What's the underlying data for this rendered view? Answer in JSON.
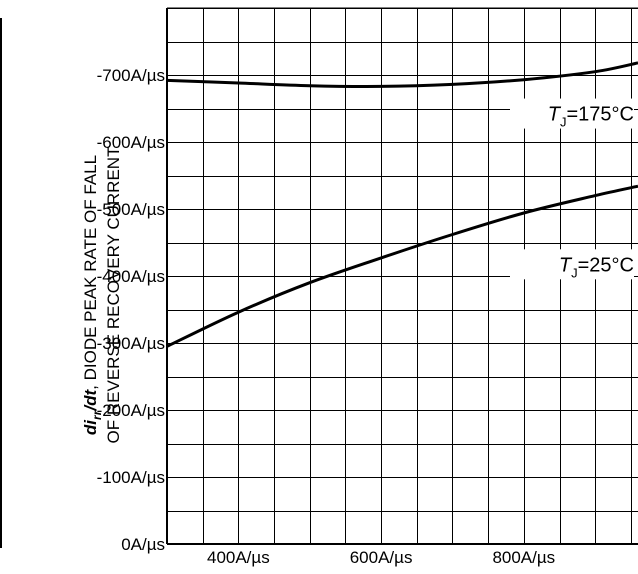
{
  "chart_data": {
    "type": "line",
    "title": "",
    "xlabel": "",
    "ylabel": {
      "line1_prefix": "di",
      "line1_subscript": "rr",
      "line1_mid": "/dt",
      "line1_rest": ", DIODE PEAK RATE OF FALL",
      "line2": "OF REVERSE RECOVERY CURRENT"
    },
    "xlim": [
      300,
      960
    ],
    "ylim": [
      0,
      800
    ],
    "x_ticks": [
      {
        "value": 400,
        "label": "400A/µs"
      },
      {
        "value": 600,
        "label": "600A/µs"
      },
      {
        "value": 800,
        "label": "800A/µs"
      }
    ],
    "y_ticks": [
      {
        "value": 0,
        "label": "0A/µs"
      },
      {
        "value": 100,
        "label": "-100A/µs"
      },
      {
        "value": 200,
        "label": "-200A/µs"
      },
      {
        "value": 300,
        "label": "-300A/µs"
      },
      {
        "value": 400,
        "label": "-400A/µs"
      },
      {
        "value": 500,
        "label": "-500A/µs"
      },
      {
        "value": 600,
        "label": "-600A/µs"
      },
      {
        "value": 700,
        "label": "-700A/µs"
      }
    ],
    "grid": true,
    "series": [
      {
        "name": "TJ=175°C",
        "label_main": "T",
        "label_sub": "J",
        "label_rest": "=175°C",
        "x": [
          300,
          400,
          500,
          600,
          700,
          800,
          900,
          960
        ],
        "y": [
          692,
          688,
          684,
          683,
          686,
          693,
          705,
          718
        ]
      },
      {
        "name": "TJ=25°C",
        "label_main": "T",
        "label_sub": "J",
        "label_rest": "=25°C",
        "x": [
          300,
          400,
          500,
          600,
          700,
          800,
          900,
          960
        ],
        "y": [
          295,
          346,
          390,
          427,
          462,
          494,
          520,
          534
        ]
      }
    ]
  }
}
